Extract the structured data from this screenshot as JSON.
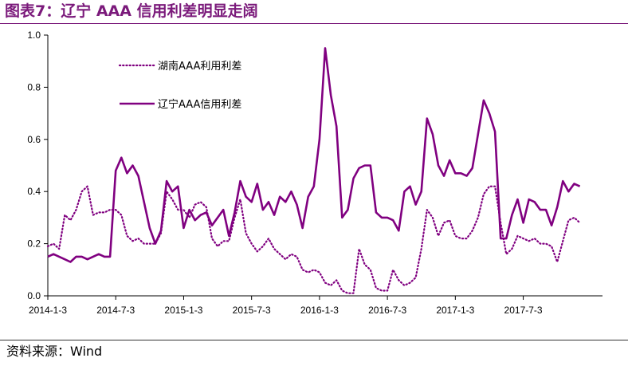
{
  "header": {
    "title": "图表7：辽宁 AAA 信用利差明显走阔"
  },
  "footer": {
    "source": "资料来源：Wind"
  },
  "colors": {
    "accent": "#7b1a7b",
    "series": "#800080",
    "axis": "#000000"
  },
  "chart_data": {
    "type": "line",
    "title": "",
    "xlabel": "",
    "ylabel": "",
    "ylim": [
      0,
      1.0
    ],
    "yticks": [
      "0.0",
      "0.2",
      "0.4",
      "0.6",
      "0.8",
      "1.0"
    ],
    "xticks": [
      "2014-1-3",
      "2014-7-3",
      "2015-1-3",
      "2015-7-3",
      "2016-1-3",
      "2016-7-3",
      "2017-1-3",
      "2017-7-3"
    ],
    "grid": false,
    "legend_position": "top-left",
    "x_index_range": [
      0,
      98
    ],
    "xtick_index": [
      0,
      12,
      24,
      36,
      48,
      60,
      72,
      84
    ],
    "series": [
      {
        "name": "湖南AAA利用利差",
        "style": "dotted",
        "values": [
          0.19,
          0.2,
          0.18,
          0.31,
          0.29,
          0.33,
          0.4,
          0.42,
          0.31,
          0.32,
          0.32,
          0.33,
          0.33,
          0.31,
          0.23,
          0.21,
          0.22,
          0.2,
          0.2,
          0.2,
          0.24,
          0.4,
          0.37,
          0.33,
          0.33,
          0.3,
          0.35,
          0.36,
          0.34,
          0.22,
          0.19,
          0.21,
          0.21,
          0.3,
          0.37,
          0.24,
          0.2,
          0.17,
          0.19,
          0.22,
          0.18,
          0.16,
          0.14,
          0.16,
          0.15,
          0.1,
          0.09,
          0.1,
          0.09,
          0.05,
          0.04,
          0.06,
          0.02,
          0.01,
          0.01,
          0.18,
          0.12,
          0.1,
          0.03,
          0.02,
          0.02,
          0.1,
          0.06,
          0.04,
          0.05,
          0.07,
          0.18,
          0.33,
          0.3,
          0.23,
          0.28,
          0.29,
          0.23,
          0.22,
          0.22,
          0.25,
          0.3,
          0.39,
          0.42,
          0.42,
          0.28,
          0.16,
          0.18,
          0.23,
          0.22,
          0.21,
          0.22,
          0.2,
          0.2,
          0.19,
          0.13,
          0.21,
          0.29,
          0.3,
          0.28
        ],
        "x_index": [
          0,
          1,
          2,
          3,
          4,
          5,
          6,
          7,
          8,
          9,
          10,
          11,
          12,
          13,
          14,
          15,
          16,
          17,
          18,
          19,
          20,
          21,
          22,
          23,
          24,
          25,
          26,
          27,
          28,
          29,
          30,
          31,
          32,
          33,
          34,
          35,
          36,
          37,
          38,
          39,
          40,
          41,
          42,
          43,
          44,
          45,
          46,
          47,
          48,
          49,
          50,
          51,
          52,
          53,
          54,
          55,
          56,
          57,
          58,
          59,
          60,
          61,
          62,
          63,
          64,
          65,
          66,
          67,
          68,
          69,
          70,
          71,
          72,
          73,
          74,
          75,
          76,
          77,
          78,
          79,
          80,
          81,
          82,
          83,
          84,
          85,
          86,
          87,
          88,
          89,
          90,
          91,
          92,
          93,
          94
        ]
      },
      {
        "name": "辽宁AAA信用利差",
        "style": "solid",
        "values": [
          0.15,
          0.16,
          0.15,
          0.14,
          0.13,
          0.15,
          0.15,
          0.14,
          0.15,
          0.16,
          0.15,
          0.15,
          0.48,
          0.53,
          0.47,
          0.5,
          0.46,
          0.36,
          0.26,
          0.2,
          0.25,
          0.44,
          0.4,
          0.42,
          0.26,
          0.33,
          0.29,
          0.31,
          0.32,
          0.27,
          0.3,
          0.33,
          0.23,
          0.32,
          0.44,
          0.38,
          0.36,
          0.43,
          0.33,
          0.36,
          0.31,
          0.38,
          0.36,
          0.4,
          0.35,
          0.26,
          0.38,
          0.42,
          0.6,
          0.95,
          0.77,
          0.65,
          0.3,
          0.33,
          0.45,
          0.49,
          0.5,
          0.5,
          0.32,
          0.3,
          0.3,
          0.29,
          0.25,
          0.4,
          0.42,
          0.35,
          0.4,
          0.68,
          0.62,
          0.5,
          0.46,
          0.52,
          0.47,
          0.47,
          0.46,
          0.49,
          0.62,
          0.75,
          0.7,
          0.63,
          0.22,
          0.22,
          0.31,
          0.37,
          0.28,
          0.37,
          0.36,
          0.33,
          0.33,
          0.27,
          0.34,
          0.44,
          0.4,
          0.43,
          0.42
        ],
        "x_index": [
          0,
          1,
          2,
          3,
          4,
          5,
          6,
          7,
          8,
          9,
          10,
          11,
          12,
          13,
          14,
          15,
          16,
          17,
          18,
          19,
          20,
          21,
          22,
          23,
          24,
          25,
          26,
          27,
          28,
          29,
          30,
          31,
          32,
          33,
          34,
          35,
          36,
          37,
          38,
          39,
          40,
          41,
          42,
          43,
          44,
          45,
          46,
          47,
          48,
          49,
          50,
          51,
          52,
          53,
          54,
          55,
          56,
          57,
          58,
          59,
          60,
          61,
          62,
          63,
          64,
          65,
          66,
          67,
          68,
          69,
          70,
          71,
          72,
          73,
          74,
          75,
          76,
          77,
          78,
          79,
          80,
          81,
          82,
          83,
          84,
          85,
          86,
          87,
          88,
          89,
          90,
          91,
          92,
          93,
          94
        ]
      }
    ]
  }
}
